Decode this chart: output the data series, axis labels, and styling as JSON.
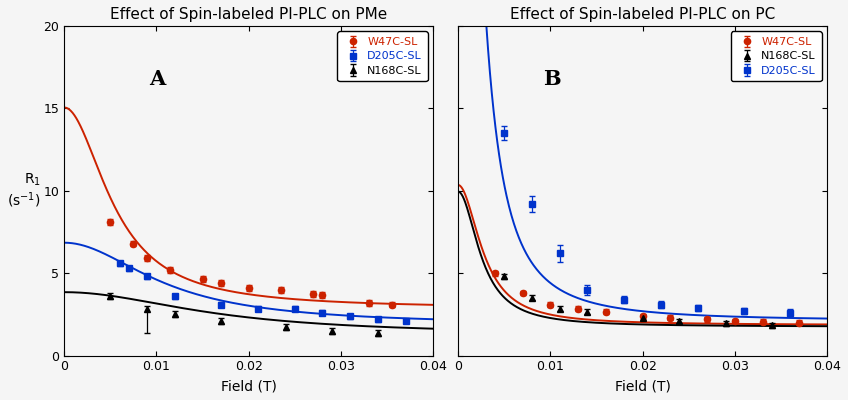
{
  "title_A": "Effect of Spin-labeled PI-PLC on PMe",
  "title_B": "Effect of Spin-labeled PI-PLC on PC",
  "xlabel": "Field (T)",
  "xlim": [
    0,
    0.04
  ],
  "ylim_A": [
    0,
    20
  ],
  "ylim_B": [
    0,
    20
  ],
  "yticks_A": [
    0,
    5,
    10,
    15,
    20
  ],
  "yticks_B": [
    0,
    5,
    10,
    15,
    20
  ],
  "panel_A": {
    "label": "A",
    "series": [
      {
        "name": "W47C-SL",
        "color": "#cc2200",
        "marker": "o",
        "curve_params": {
          "a": 12.2,
          "b": 180,
          "c": 2.85
        },
        "data_x": [
          0.005,
          0.0075,
          0.009,
          0.0115,
          0.015,
          0.017,
          0.02,
          0.0235,
          0.027,
          0.028,
          0.033,
          0.0355
        ],
        "data_y": [
          8.1,
          6.8,
          5.9,
          5.2,
          4.65,
          4.4,
          4.1,
          4.0,
          3.75,
          3.7,
          3.2,
          3.1
        ],
        "yerr": [
          0.18,
          0.18,
          0.18,
          0.18,
          0.18,
          0.18,
          0.18,
          0.18,
          0.18,
          0.18,
          0.18,
          0.18
        ]
      },
      {
        "name": "D205C-SL",
        "color": "#0033cc",
        "marker": "s",
        "curve_params": {
          "a": 5.0,
          "b": 90,
          "c": 1.85
        },
        "data_x": [
          0.006,
          0.007,
          0.009,
          0.012,
          0.017,
          0.021,
          0.025,
          0.028,
          0.031,
          0.034,
          0.037
        ],
        "data_y": [
          5.6,
          5.3,
          4.8,
          3.6,
          3.1,
          2.85,
          2.85,
          2.6,
          2.4,
          2.2,
          2.1
        ],
        "yerr": [
          0.15,
          0.15,
          0.15,
          0.15,
          0.15,
          0.15,
          0.15,
          0.15,
          0.15,
          0.15,
          0.15
        ]
      },
      {
        "name": "N168C-SL",
        "color": "#000000",
        "marker": "^",
        "curve_params": {
          "a": 2.6,
          "b": 60,
          "c": 1.25
        },
        "data_x": [
          0.005,
          0.009,
          0.012,
          0.017,
          0.024,
          0.029,
          0.034
        ],
        "data_y": [
          3.6,
          2.85,
          2.5,
          2.1,
          1.75,
          1.5,
          1.4
        ],
        "yerr": [
          0.18,
          0.18,
          0.18,
          0.18,
          0.18,
          0.18,
          0.18
        ],
        "yerr_special": {
          "idx": 1,
          "lo": 1.5,
          "hi": 0.18
        }
      }
    ]
  },
  "panel_B": {
    "label": "B",
    "series": [
      {
        "name": "W47C-SL",
        "color": "#cc2200",
        "marker": "o",
        "curve_params": {
          "a": 8.5,
          "b": 350,
          "c": 1.85
        },
        "data_x": [
          0.004,
          0.007,
          0.01,
          0.013,
          0.016,
          0.02,
          0.023,
          0.027,
          0.03,
          0.033,
          0.037
        ],
        "data_y": [
          5.0,
          3.8,
          3.1,
          2.85,
          2.65,
          2.4,
          2.3,
          2.2,
          2.1,
          2.05,
          2.0
        ],
        "yerr": [
          0.15,
          0.15,
          0.15,
          0.15,
          0.15,
          0.15,
          0.15,
          0.15,
          0.15,
          0.15,
          0.15
        ]
      },
      {
        "name": "N168C-SL",
        "color": "#000000",
        "marker": "^",
        "curve_params": {
          "a": 8.2,
          "b": 380,
          "c": 1.75
        },
        "data_x": [
          0.005,
          0.008,
          0.011,
          0.014,
          0.02,
          0.024,
          0.029,
          0.034
        ],
        "data_y": [
          4.8,
          3.5,
          2.85,
          2.65,
          2.3,
          2.1,
          1.95,
          1.85
        ],
        "yerr": [
          0.15,
          0.15,
          0.15,
          0.15,
          0.15,
          0.15,
          0.15,
          0.15
        ]
      },
      {
        "name": "D205C-SL",
        "color": "#0033cc",
        "marker": "s",
        "curve_params": {
          "a": 60.0,
          "b": 500,
          "c": 2.1
        },
        "data_x": [
          0.005,
          0.008,
          0.011,
          0.014,
          0.018,
          0.022,
          0.026,
          0.031,
          0.036
        ],
        "data_y": [
          13.5,
          9.2,
          6.2,
          4.0,
          3.4,
          3.1,
          2.9,
          2.7,
          2.6
        ],
        "yerr": [
          0.4,
          0.5,
          0.5,
          0.3,
          0.2,
          0.2,
          0.2,
          0.2,
          0.2
        ]
      }
    ]
  },
  "background_color": "#f5f5f5",
  "legend_fontsize": 8,
  "axis_fontsize": 10,
  "title_fontsize": 11,
  "label_fontsize": 15
}
